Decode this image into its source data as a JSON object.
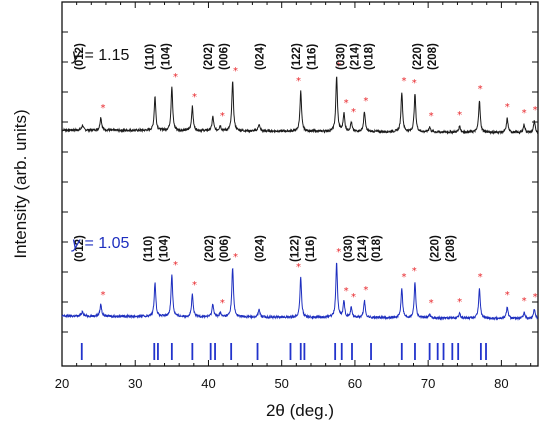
{
  "chart_data": {
    "type": "line",
    "xlabel": "2θ (deg.)",
    "ylabel": "Intensity (arb. units)",
    "xlim": [
      20,
      85
    ],
    "xticks": [
      20,
      30,
      40,
      50,
      60,
      70,
      80
    ],
    "colors": {
      "top": "#1a1a1a",
      "bottom": "#1e2fbf",
      "stars": "#e8262b",
      "reflections": "#2233cc"
    },
    "series": [
      {
        "key": "top",
        "label_var": "y",
        "label_val": " = 1.15",
        "baseline": 130,
        "peaks": [
          [
            22.8,
            5
          ],
          [
            25.3,
            13
          ],
          [
            32.7,
            34
          ],
          [
            35.0,
            44
          ],
          [
            37.8,
            24
          ],
          [
            40.6,
            14
          ],
          [
            41.6,
            5
          ],
          [
            43.3,
            50
          ],
          [
            46.9,
            7
          ],
          [
            52.6,
            40
          ],
          [
            57.5,
            55
          ],
          [
            58.5,
            18
          ],
          [
            59.5,
            9
          ],
          [
            61.3,
            20
          ],
          [
            66.4,
            40
          ],
          [
            68.2,
            38
          ],
          [
            70.2,
            5
          ],
          [
            74.3,
            6
          ],
          [
            77.0,
            32
          ],
          [
            80.8,
            14
          ],
          [
            83.1,
            8
          ],
          [
            84.5,
            11
          ]
        ],
        "stars": [
          25.6,
          35.5,
          38.1,
          41.9,
          43.7,
          52.3,
          57.8,
          58.8,
          59.8,
          61.5,
          66.7,
          68.1,
          70.4,
          74.3,
          77.1,
          80.8,
          83.1,
          84.6
        ],
        "labels": [
          {
            "x": 22.9,
            "text": "(012)"
          },
          {
            "x": 32.5,
            "text": "(110)"
          },
          {
            "x": 34.7,
            "text": "(104)"
          },
          {
            "x": 40.5,
            "text": "(202)"
          },
          {
            "x": 42.6,
            "text": "(006)"
          },
          {
            "x": 47.5,
            "text": "(024)"
          },
          {
            "x": 52.5,
            "text": "(122)"
          },
          {
            "x": 54.6,
            "text": "(116)"
          },
          {
            "x": 58.6,
            "text": "(030)"
          },
          {
            "x": 60.5,
            "text": "(214)"
          },
          {
            "x": 62.4,
            "text": "(018)"
          },
          {
            "x": 69.0,
            "text": "(220)"
          },
          {
            "x": 71.1,
            "text": "(208)"
          }
        ]
      },
      {
        "key": "bottom",
        "label_var": "y",
        "label_val": " = 1.05",
        "baseline": 316,
        "peaks": [
          [
            22.8,
            5
          ],
          [
            25.3,
            12
          ],
          [
            32.7,
            34
          ],
          [
            35.0,
            42
          ],
          [
            37.8,
            22
          ],
          [
            40.6,
            13
          ],
          [
            41.6,
            4
          ],
          [
            43.3,
            50
          ],
          [
            46.9,
            8
          ],
          [
            52.6,
            40
          ],
          [
            57.5,
            55
          ],
          [
            58.5,
            16
          ],
          [
            59.5,
            10
          ],
          [
            61.3,
            17
          ],
          [
            66.4,
            30
          ],
          [
            68.2,
            36
          ],
          [
            70.2,
            4
          ],
          [
            74.3,
            5
          ],
          [
            77.0,
            30
          ],
          [
            80.8,
            12
          ],
          [
            83.1,
            6
          ],
          [
            84.5,
            10
          ]
        ],
        "stars": [
          25.6,
          35.5,
          38.1,
          41.9,
          43.7,
          52.3,
          57.8,
          58.8,
          59.8,
          61.5,
          66.7,
          68.1,
          70.4,
          74.3,
          77.1,
          80.8,
          83.1,
          84.6
        ],
        "labels": [
          {
            "x": 22.9,
            "text": "(012)"
          },
          {
            "x": 32.3,
            "text": "(110)"
          },
          {
            "x": 34.4,
            "text": "(104)"
          },
          {
            "x": 40.6,
            "text": "(202)"
          },
          {
            "x": 42.7,
            "text": "(006)"
          },
          {
            "x": 47.5,
            "text": "(024)"
          },
          {
            "x": 52.3,
            "text": "(122)"
          },
          {
            "x": 54.4,
            "text": "(116)"
          },
          {
            "x": 59.6,
            "text": "(030)"
          },
          {
            "x": 61.5,
            "text": "(214)"
          },
          {
            "x": 63.4,
            "text": "(018)"
          },
          {
            "x": 71.4,
            "text": "(220)"
          },
          {
            "x": 73.5,
            "text": "(208)"
          }
        ]
      }
    ],
    "reference_reflections": [
      22.7,
      32.6,
      33.1,
      35.0,
      37.8,
      40.3,
      40.9,
      43.1,
      46.7,
      51.2,
      52.6,
      53.1,
      57.3,
      58.2,
      59.6,
      62.2,
      66.4,
      68.2,
      70.2,
      71.3,
      72.1,
      73.3,
      74.1,
      77.2,
      77.9
    ]
  }
}
